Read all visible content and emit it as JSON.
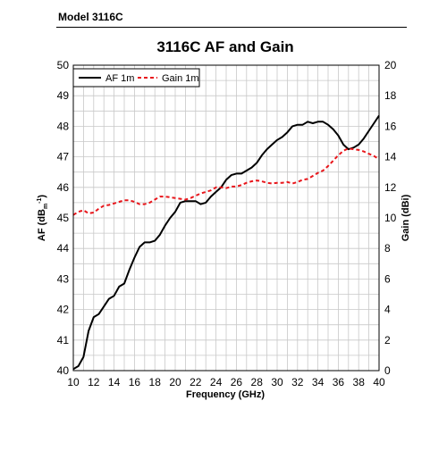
{
  "header": {
    "model": "Model 3116C"
  },
  "chart_data": {
    "type": "line",
    "title": "3116C AF and Gain",
    "xlabel": "Frequency (GHz)",
    "ylabel_left": "AF (dB_m-1)",
    "ylabel_left_parts": [
      "AF (dB",
      "m",
      "-1",
      ")"
    ],
    "ylabel_right": "Gain (dBi)",
    "xlim": [
      10,
      40
    ],
    "ylim_left": [
      40,
      50
    ],
    "ylim_right": [
      0,
      20
    ],
    "x_ticks": [
      "10",
      "12",
      "14",
      "16",
      "18",
      "20",
      "22",
      "24",
      "26",
      "28",
      "30",
      "32",
      "34",
      "36",
      "38",
      "40"
    ],
    "y_left_ticks": [
      "40",
      "41",
      "42",
      "43",
      "44",
      "45",
      "46",
      "47",
      "48",
      "49",
      "50"
    ],
    "y_right_ticks": [
      "0",
      "2",
      "4",
      "6",
      "8",
      "10",
      "12",
      "14",
      "16",
      "18",
      "20"
    ],
    "grid": true,
    "legend_position": "top-left",
    "series": [
      {
        "name": "AF 1m",
        "axis": "left",
        "style": "solid",
        "color": "#000000",
        "points": [
          [
            10,
            40.05
          ],
          [
            10.5,
            40.15
          ],
          [
            11,
            40.45
          ],
          [
            11.5,
            41.3
          ],
          [
            12,
            41.75
          ],
          [
            12.5,
            41.85
          ],
          [
            13,
            42.1
          ],
          [
            13.5,
            42.35
          ],
          [
            14,
            42.45
          ],
          [
            14.5,
            42.75
          ],
          [
            15,
            42.85
          ],
          [
            15.5,
            43.3
          ],
          [
            16,
            43.7
          ],
          [
            16.5,
            44.05
          ],
          [
            17,
            44.2
          ],
          [
            17.5,
            44.2
          ],
          [
            18,
            44.25
          ],
          [
            18.5,
            44.45
          ],
          [
            19,
            44.75
          ],
          [
            19.5,
            45.0
          ],
          [
            20,
            45.2
          ],
          [
            20.5,
            45.5
          ],
          [
            21,
            45.55
          ],
          [
            21.5,
            45.55
          ],
          [
            22,
            45.55
          ],
          [
            22.5,
            45.45
          ],
          [
            23,
            45.5
          ],
          [
            23.5,
            45.7
          ],
          [
            24,
            45.85
          ],
          [
            24.5,
            46.0
          ],
          [
            25,
            46.25
          ],
          [
            25.5,
            46.4
          ],
          [
            26,
            46.45
          ],
          [
            26.5,
            46.45
          ],
          [
            27,
            46.55
          ],
          [
            27.5,
            46.65
          ],
          [
            28,
            46.8
          ],
          [
            28.5,
            47.05
          ],
          [
            29,
            47.25
          ],
          [
            29.5,
            47.4
          ],
          [
            30,
            47.55
          ],
          [
            30.5,
            47.65
          ],
          [
            31,
            47.8
          ],
          [
            31.5,
            48.0
          ],
          [
            32,
            48.05
          ],
          [
            32.5,
            48.05
          ],
          [
            33,
            48.15
          ],
          [
            33.5,
            48.1
          ],
          [
            34,
            48.15
          ],
          [
            34.5,
            48.15
          ],
          [
            35,
            48.05
          ],
          [
            35.5,
            47.9
          ],
          [
            36,
            47.7
          ],
          [
            36.5,
            47.4
          ],
          [
            37,
            47.25
          ],
          [
            37.5,
            47.3
          ],
          [
            38,
            47.4
          ],
          [
            38.5,
            47.6
          ],
          [
            39,
            47.85
          ],
          [
            39.5,
            48.1
          ],
          [
            40,
            48.35
          ]
        ]
      },
      {
        "name": "Gain 1m",
        "axis": "right",
        "style": "dashed",
        "color": "#e8161b",
        "points": [
          [
            10,
            10.2
          ],
          [
            10.5,
            10.4
          ],
          [
            11,
            10.5
          ],
          [
            11.5,
            10.3
          ],
          [
            12,
            10.35
          ],
          [
            12.5,
            10.6
          ],
          [
            13,
            10.8
          ],
          [
            13.5,
            10.85
          ],
          [
            14,
            10.95
          ],
          [
            14.5,
            11.05
          ],
          [
            15,
            11.15
          ],
          [
            15.5,
            11.15
          ],
          [
            16,
            11.05
          ],
          [
            16.5,
            10.9
          ],
          [
            17,
            10.9
          ],
          [
            17.5,
            11.0
          ],
          [
            18,
            11.2
          ],
          [
            18.5,
            11.4
          ],
          [
            19,
            11.4
          ],
          [
            19.5,
            11.35
          ],
          [
            20,
            11.3
          ],
          [
            20.5,
            11.25
          ],
          [
            21,
            11.2
          ],
          [
            21.5,
            11.3
          ],
          [
            22,
            11.45
          ],
          [
            22.5,
            11.6
          ],
          [
            23,
            11.7
          ],
          [
            23.5,
            11.8
          ],
          [
            24,
            12.0
          ],
          [
            24.5,
            12.0
          ],
          [
            25,
            11.95
          ],
          [
            25.5,
            12.05
          ],
          [
            26,
            12.05
          ],
          [
            26.5,
            12.15
          ],
          [
            27,
            12.3
          ],
          [
            27.5,
            12.4
          ],
          [
            28,
            12.45
          ],
          [
            28.5,
            12.4
          ],
          [
            29,
            12.3
          ],
          [
            29.5,
            12.25
          ],
          [
            30,
            12.3
          ],
          [
            30.5,
            12.3
          ],
          [
            31,
            12.35
          ],
          [
            31.5,
            12.25
          ],
          [
            32,
            12.35
          ],
          [
            32.5,
            12.5
          ],
          [
            33,
            12.55
          ],
          [
            33.5,
            12.75
          ],
          [
            34,
            12.95
          ],
          [
            34.5,
            13.1
          ],
          [
            35,
            13.4
          ],
          [
            35.5,
            13.75
          ],
          [
            36,
            14.1
          ],
          [
            36.5,
            14.4
          ],
          [
            37,
            14.55
          ],
          [
            37.5,
            14.5
          ],
          [
            38,
            14.45
          ],
          [
            38.5,
            14.35
          ],
          [
            39,
            14.2
          ],
          [
            39.5,
            14.05
          ],
          [
            40,
            13.85
          ]
        ]
      }
    ]
  }
}
